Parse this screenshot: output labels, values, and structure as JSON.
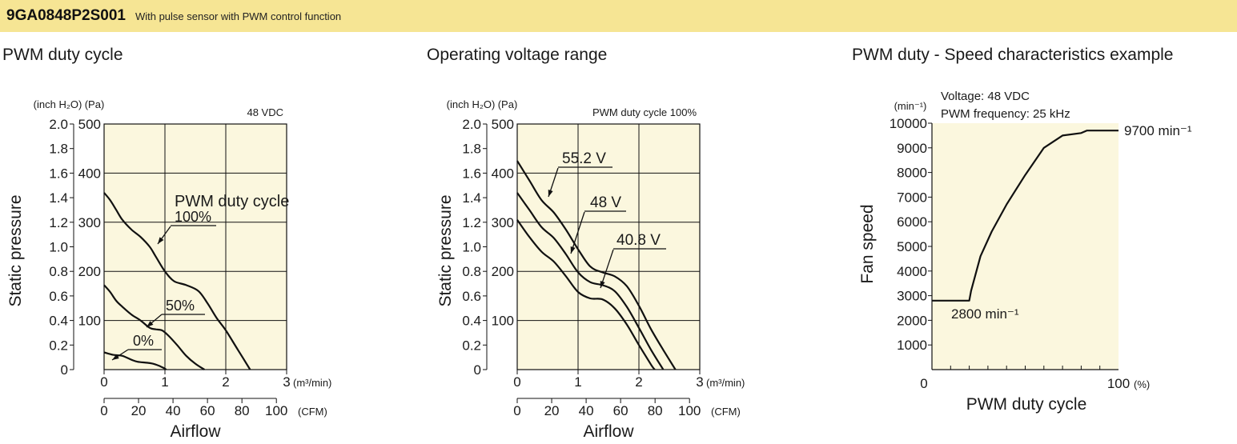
{
  "header": {
    "model": "9GA0848P2S001",
    "description": "With pulse sensor with PWM control function"
  },
  "colors": {
    "banner": "#f6e594",
    "plot_bg": "#fbf7de",
    "line": "#111111"
  },
  "chart_data": [
    {
      "type": "line",
      "title": "PWM duty cycle",
      "condition": "48 VDC",
      "xlabel": "Airflow",
      "ylabel": "Static pressure",
      "x_unit_primary": "(m³/min)",
      "x_unit_secondary": "(CFM)",
      "y_unit_inch": "(inch H₂O)",
      "y_unit_pa": "(Pa)",
      "xlim": [
        0,
        3
      ],
      "ylim": [
        0,
        500
      ],
      "x_ticks": [
        "0",
        "1",
        "2",
        "3"
      ],
      "cfm_ticks": [
        "0",
        "20",
        "40",
        "60",
        "80",
        "100"
      ],
      "inch_ticks": [
        "2.0",
        "1.8",
        "1.6",
        "1.4",
        "1.2",
        "1.0",
        "0.8",
        "0.6",
        "0.4",
        "0.2",
        "0"
      ],
      "pa_ticks": [
        "500",
        "400",
        "300",
        "200",
        "100"
      ],
      "grid": true,
      "series_title": "PWM duty cycle",
      "series": [
        {
          "name": "100%",
          "x": [
            0,
            0.1,
            0.2,
            0.3,
            0.45,
            0.6,
            0.75,
            0.85,
            1.0,
            1.15,
            1.35,
            1.55,
            1.7,
            1.85,
            2.0,
            2.2,
            2.4
          ],
          "y": [
            360,
            345,
            325,
            305,
            285,
            270,
            250,
            230,
            200,
            180,
            172,
            160,
            135,
            105,
            80,
            40,
            0
          ]
        },
        {
          "name": "50%",
          "x": [
            0,
            0.1,
            0.2,
            0.3,
            0.45,
            0.6,
            0.75,
            0.85,
            0.95,
            1.05,
            1.2,
            1.35,
            1.5,
            1.65
          ],
          "y": [
            172,
            158,
            140,
            128,
            112,
            100,
            85,
            82,
            80,
            70,
            50,
            28,
            12,
            0
          ]
        },
        {
          "name": "0%",
          "x": [
            0,
            0.15,
            0.3,
            0.45,
            0.55,
            0.7,
            0.8,
            0.9,
            0.95,
            1.0,
            1.02
          ],
          "y": [
            35,
            30,
            28,
            20,
            16,
            14,
            12,
            8,
            5,
            2,
            0
          ]
        }
      ]
    },
    {
      "type": "line",
      "title": "Operating voltage range",
      "condition": "PWM duty cycle 100%",
      "xlabel": "Airflow",
      "ylabel": "Static pressure",
      "x_unit_primary": "(m³/min)",
      "x_unit_secondary": "(CFM)",
      "y_unit_inch": "(inch H₂O)",
      "y_unit_pa": "(Pa)",
      "xlim": [
        0,
        3
      ],
      "ylim": [
        0,
        500
      ],
      "x_ticks": [
        "0",
        "1",
        "2",
        "3"
      ],
      "cfm_ticks": [
        "0",
        "20",
        "40",
        "60",
        "80",
        "100"
      ],
      "inch_ticks": [
        "2.0",
        "1.8",
        "1.6",
        "1.4",
        "1.2",
        "1.0",
        "0.8",
        "0.6",
        "0.4",
        "0.2",
        "0"
      ],
      "pa_ticks": [
        "500",
        "400",
        "300",
        "200",
        "100"
      ],
      "grid": true,
      "series": [
        {
          "name": "55.2 V",
          "x": [
            0,
            0.2,
            0.4,
            0.6,
            0.8,
            1.0,
            1.2,
            1.4,
            1.6,
            1.8,
            2.0,
            2.2,
            2.4,
            2.6
          ],
          "y": [
            425,
            385,
            345,
            320,
            285,
            245,
            210,
            198,
            190,
            170,
            130,
            82,
            40,
            0
          ]
        },
        {
          "name": "48 V",
          "x": [
            0,
            0.2,
            0.4,
            0.6,
            0.8,
            1.0,
            1.2,
            1.4,
            1.6,
            1.8,
            2.0,
            2.2,
            2.4
          ],
          "y": [
            360,
            325,
            290,
            268,
            235,
            198,
            178,
            172,
            160,
            128,
            85,
            40,
            0
          ]
        },
        {
          "name": "40.8 V",
          "x": [
            0,
            0.2,
            0.4,
            0.6,
            0.8,
            1.0,
            1.2,
            1.4,
            1.6,
            1.8,
            2.0,
            2.2,
            2.26
          ],
          "y": [
            305,
            270,
            240,
            220,
            190,
            158,
            145,
            143,
            125,
            92,
            50,
            10,
            0
          ]
        }
      ]
    },
    {
      "type": "line",
      "title": "PWM duty - Speed characteristics example",
      "condition_voltage": "Voltage: 48 VDC",
      "condition_frequency": "PWM frequency: 25 kHz",
      "xlabel": "PWM duty cycle",
      "ylabel": "Fan speed",
      "y_unit": "(min⁻¹)",
      "x_unit": "(%)",
      "xlim": [
        0,
        100
      ],
      "ylim": [
        0,
        10000
      ],
      "x_ticks": [
        "0",
        "100"
      ],
      "y_ticks": [
        "10000",
        "9000",
        "8000",
        "7000",
        "6000",
        "5000",
        "4000",
        "3000",
        "2000",
        "1000"
      ],
      "grid": false,
      "series": [
        {
          "name": "",
          "x": [
            0,
            20,
            21,
            26,
            32,
            40,
            50,
            60,
            70,
            80,
            83,
            100
          ],
          "y": [
            2800,
            2800,
            3200,
            4600,
            5600,
            6700,
            7900,
            9000,
            9500,
            9600,
            9700,
            9700
          ]
        }
      ],
      "annotations": {
        "min": "2800 min⁻¹",
        "max": "9700 min⁻¹"
      }
    }
  ]
}
